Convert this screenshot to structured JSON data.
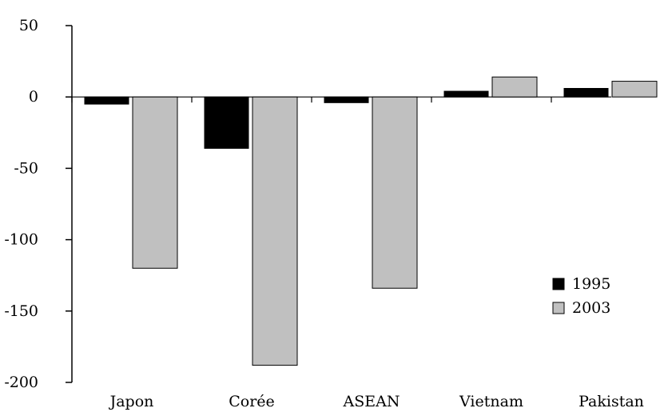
{
  "chart_data": {
    "type": "bar",
    "categories": [
      "Japon",
      "Corée",
      "ASEAN",
      "Vietnam",
      "Pakistan"
    ],
    "series": [
      {
        "name": "1995",
        "values": [
          -5,
          -36,
          -4,
          4,
          6
        ],
        "color": "#000000"
      },
      {
        "name": "2003",
        "values": [
          -120,
          -188,
          -134,
          14,
          11
        ],
        "color": "#c0c0c0"
      }
    ],
    "ylim": [
      -200,
      50
    ],
    "yticks": [
      50,
      0,
      -50,
      -100,
      -150,
      -200
    ],
    "grid": false,
    "legend": "right"
  }
}
